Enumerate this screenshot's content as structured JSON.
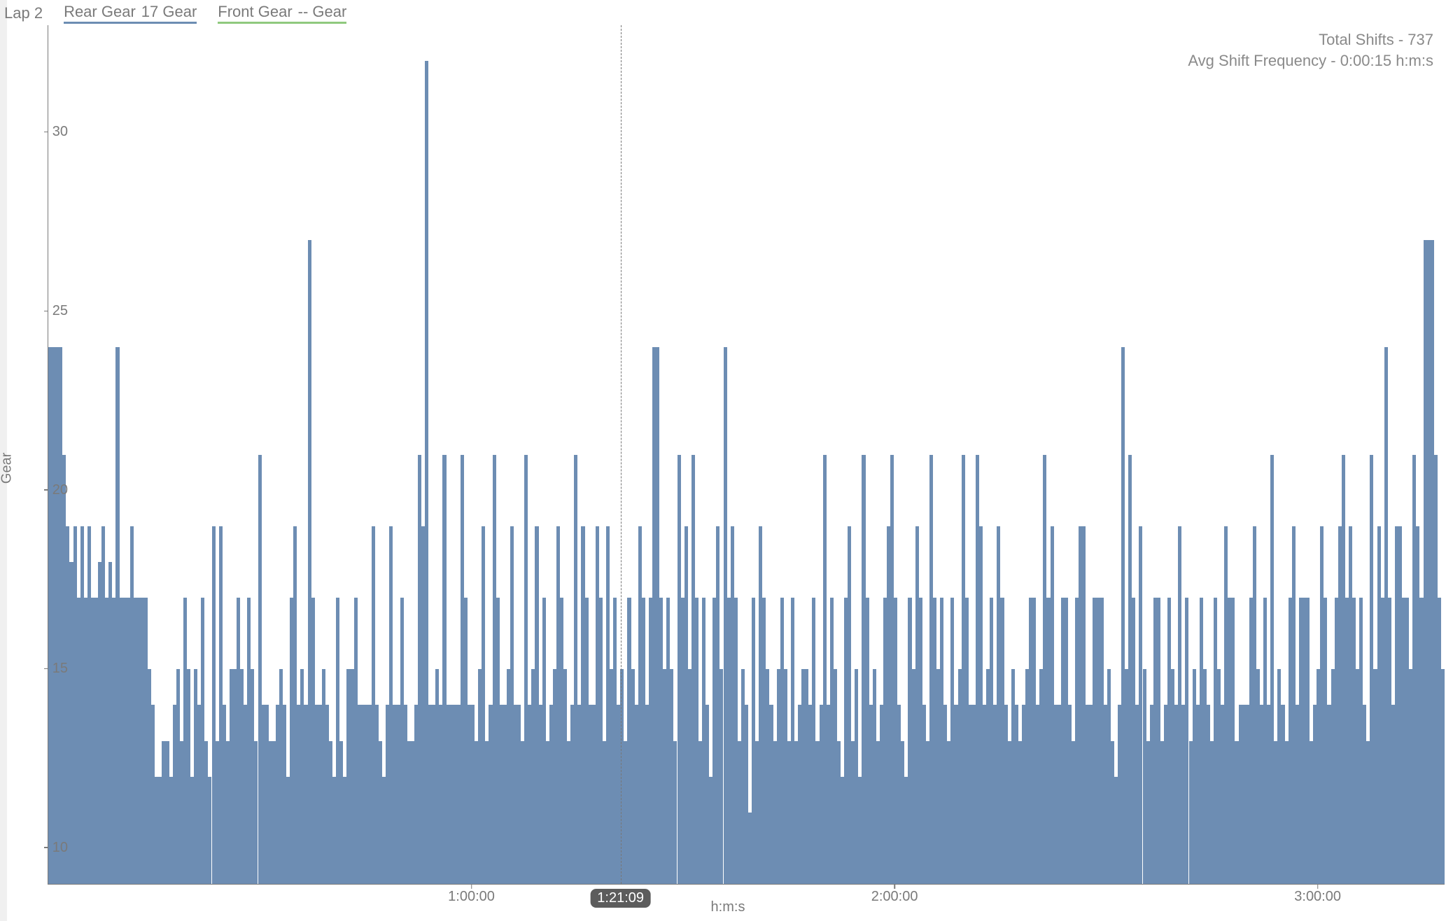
{
  "header": {
    "lap_label": "Lap 2",
    "series": [
      {
        "name": "Rear Gear",
        "value": "17 Gear",
        "underline_color": "#6d8db3"
      },
      {
        "name": "Front Gear",
        "value": "-- Gear",
        "underline_color": "#8fc97e"
      }
    ]
  },
  "stats": {
    "total_shifts_label": "Total Shifts",
    "total_shifts_value": "737",
    "avg_freq_label": "Avg Shift Frequency",
    "avg_freq_value": "0:00:15 h:m:s"
  },
  "chart": {
    "type": "bar",
    "ylabel": "Gear",
    "xlabel": "h:m:s",
    "ylim": [
      9,
      33
    ],
    "yticks": [
      10,
      15,
      20,
      25,
      30
    ],
    "x_domain_seconds": [
      0,
      11880
    ],
    "xticks": [
      {
        "seconds": 3600,
        "label": "1:00:00"
      },
      {
        "seconds": 7200,
        "label": "2:00:00"
      },
      {
        "seconds": 10800,
        "label": "3:00:00"
      }
    ],
    "cursor": {
      "seconds": 4869,
      "label": "1:21:09"
    },
    "bar_color": "#6d8db3",
    "axis_color": "#7a7a7a",
    "label_color": "#7a7a7a",
    "background_color": "#ffffff",
    "label_fontsize": 20,
    "values": [
      24,
      24,
      24,
      24,
      21,
      19,
      18,
      19,
      17,
      19,
      17,
      19,
      17,
      17,
      18,
      19,
      17,
      18,
      17,
      24,
      17,
      17,
      17,
      19,
      17,
      17,
      17,
      17,
      15,
      14,
      12,
      12,
      13,
      13,
      12,
      14,
      15,
      13,
      17,
      15,
      12,
      15,
      14,
      17,
      13,
      12,
      19,
      13,
      19,
      14,
      13,
      15,
      15,
      17,
      15,
      14,
      17,
      15,
      13,
      21,
      14,
      14,
      13,
      13,
      14,
      15,
      14,
      12,
      17,
      19,
      14,
      15,
      14,
      27,
      17,
      14,
      14,
      15,
      14,
      13,
      12,
      17,
      13,
      12,
      15,
      15,
      17,
      14,
      14,
      14,
      14,
      19,
      14,
      13,
      12,
      14,
      19,
      14,
      14,
      17,
      14,
      13,
      13,
      14,
      21,
      19,
      32,
      14,
      14,
      15,
      14,
      21,
      14,
      14,
      14,
      14,
      21,
      17,
      14,
      14,
      13,
      15,
      19,
      13,
      14,
      21,
      17,
      14,
      14,
      15,
      19,
      14,
      14,
      13,
      21,
      14,
      15,
      19,
      14,
      17,
      13,
      14,
      15,
      19,
      17,
      15,
      13,
      14,
      21,
      14,
      19,
      17,
      14,
      14,
      19,
      17,
      13,
      19,
      15,
      17,
      14,
      15,
      13,
      17,
      15,
      14,
      19,
      17,
      14,
      17,
      24,
      24,
      17,
      15,
      17,
      15,
      13,
      21,
      17,
      19,
      15,
      21,
      17,
      13,
      17,
      14,
      12,
      17,
      19,
      15,
      24,
      17,
      19,
      17,
      13,
      15,
      14,
      11,
      17,
      13,
      19,
      17,
      15,
      14,
      13,
      15,
      17,
      15,
      13,
      17,
      13,
      14,
      15,
      15,
      14,
      17,
      13,
      14,
      21,
      14,
      17,
      15,
      13,
      12,
      17,
      19,
      13,
      15,
      12,
      21,
      17,
      14,
      15,
      13,
      14,
      17,
      19,
      21,
      17,
      14,
      13,
      12,
      17,
      15,
      19,
      17,
      14,
      13,
      21,
      17,
      15,
      17,
      14,
      13,
      17,
      14,
      15,
      21,
      17,
      14,
      14,
      21,
      19,
      14,
      15,
      17,
      14,
      19,
      17,
      14,
      13,
      15,
      14,
      13,
      14,
      15,
      17,
      17,
      14,
      15,
      21,
      17,
      19,
      14,
      14,
      17,
      17,
      14,
      13,
      17,
      19,
      19,
      14,
      14,
      17,
      17,
      17,
      14,
      15,
      13,
      12,
      14,
      24,
      15,
      21,
      17,
      14,
      19,
      15,
      13,
      14,
      17,
      17,
      13,
      14,
      17,
      15,
      14,
      19,
      14,
      17,
      13,
      15,
      14,
      17,
      15,
      14,
      13,
      17,
      15,
      14,
      19,
      17,
      17,
      13,
      14,
      14,
      14,
      17,
      19,
      15,
      14,
      17,
      14,
      21,
      13,
      15,
      14,
      13,
      17,
      19,
      14,
      17,
      17,
      17,
      13,
      14,
      15,
      19,
      17,
      14,
      15,
      17,
      19,
      21,
      17,
      19,
      17,
      15,
      17,
      14,
      13,
      21,
      15,
      19,
      17,
      24,
      17,
      14,
      19,
      19,
      17,
      17,
      15,
      21,
      19,
      17,
      27,
      27,
      27,
      21,
      17,
      15
    ]
  }
}
